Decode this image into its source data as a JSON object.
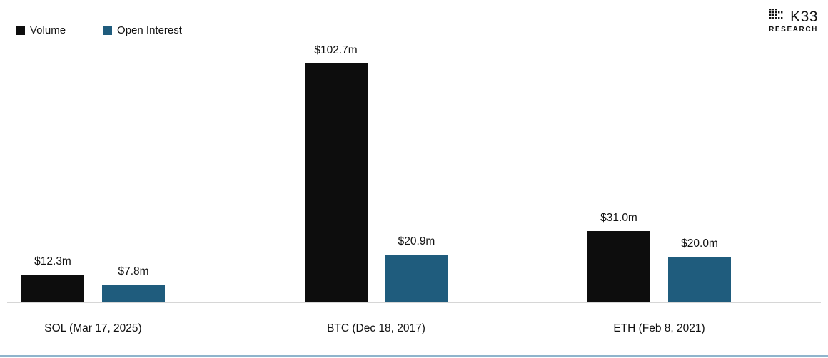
{
  "legend": {
    "items": [
      {
        "label": "Volume",
        "color": "#0d0d0d"
      },
      {
        "label": "Open Interest",
        "color": "#1f5c7d"
      }
    ]
  },
  "logo": {
    "brand": "K33",
    "sub": "RESEARCH"
  },
  "chart_data": {
    "type": "bar",
    "title": "",
    "categories": [
      "SOL (Mar 17, 2025)",
      "BTC (Dec 18, 2017)",
      "ETH (Feb 8, 2021)"
    ],
    "series": [
      {
        "name": "Volume",
        "color": "#0d0d0d",
        "values": [
          12.3,
          102.7,
          31.0
        ],
        "labels": [
          "$12.3m",
          "$102.7m",
          "$31.0m"
        ]
      },
      {
        "name": "Open Interest",
        "color": "#1f5c7d",
        "values": [
          7.8,
          20.9,
          20.0
        ],
        "labels": [
          "$7.8m",
          "$20.9m",
          "$20.0m"
        ]
      }
    ],
    "value_unit": "$m",
    "ylim": [
      0,
      110
    ],
    "grid": false,
    "legend_position": "top-left"
  },
  "colors": {
    "bar_black": "#0d0d0d",
    "bar_blue": "#1f5c7d",
    "axis_line": "#d6d6d6",
    "bottom_border": "#8fb4cc"
  }
}
